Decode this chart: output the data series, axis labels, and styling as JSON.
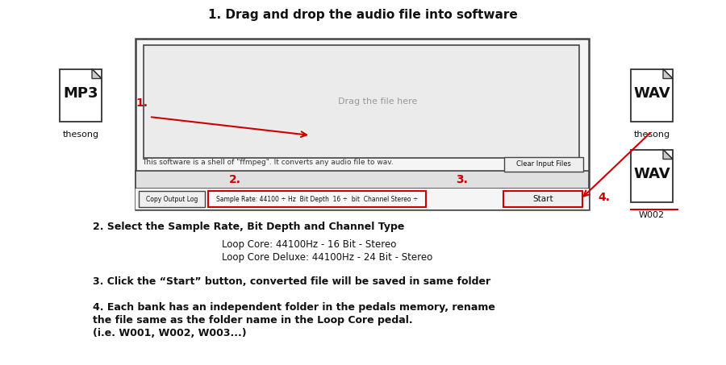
{
  "title": "1. Drag and drop the audio file into software",
  "bg_color": "#ffffff",
  "step2_header": "2. Select the Sample Rate, Bit Depth and Channel Type",
  "step2_line1": "Loop Core: 44100Hz - 16 Bit - Stereo",
  "step2_line2": "Loop Core Deluxe: 44100Hz - 24 Bit - Stereo",
  "step3_text": "3. Click the “Start” button, converted file will be saved in same folder",
  "step4_line1": "4. Each bank has an independent folder in the pedals memory, rename",
  "step4_line2": "the file same as the folder name in the Loop Core pedal.",
  "step4_line3": "(i.e. W001, W002, W003...)",
  "drag_text": "Drag the file here",
  "info_text": "This software is a shell of \"ffmpeg\". It converts any audio file to wav.",
  "clear_btn_text": "Clear Input Files",
  "label2_text": "2.",
  "label3_text": "3.",
  "copy_btn_text": "Copy Output Log",
  "settings_text": "Sample Rate: 44100 ÷ Hz  Bit Depth  16 ÷  bit  Channel Stereo ÷",
  "start_btn_text": "Start",
  "red_color": "#cc0000",
  "box_edge_color": "#444444",
  "label_color": "#cc0000",
  "mp3_label": "MP3",
  "mp3_sub": "thesong",
  "wav1_label": "WAV",
  "wav1_sub": "thesong",
  "wav2_label": "WAV",
  "wav2_sub": "W002"
}
